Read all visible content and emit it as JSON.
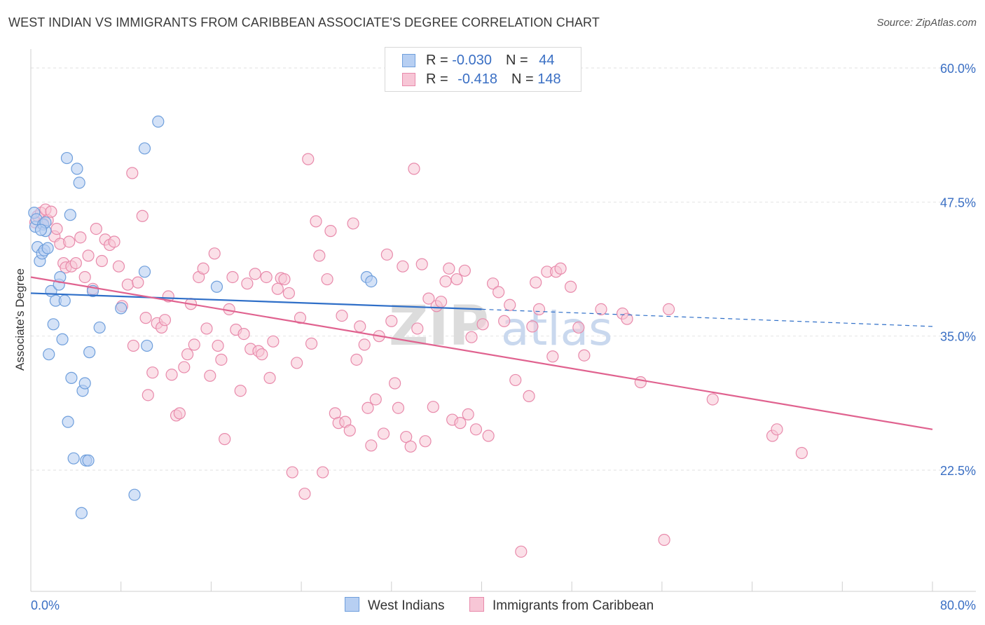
{
  "title": "WEST INDIAN VS IMMIGRANTS FROM CARIBBEAN ASSOCIATE'S DEGREE CORRELATION CHART",
  "source": "Source: ZipAtlas.com",
  "colors": {
    "blue": "#6f9fdc",
    "blue_fill": "#b7cff2",
    "blue_line": "#2f6fc8",
    "pink": "#e88aab",
    "pink_fill": "#f7c6d6",
    "pink_line": "#e0628f",
    "axis_text": "#3a6fc4"
  },
  "legend": {
    "row1": {
      "r_label": "R = ",
      "r_value": "-0.030",
      "n_label": "N = ",
      "n_value": "44"
    },
    "row2": {
      "r_label": "R = ",
      "r_value": "-0.418",
      "n_label": "N = ",
      "n_value": "148"
    }
  },
  "bottom_legend": {
    "series1": "West Indians",
    "series2": "Immigrants from Caribbean"
  },
  "watermark": {
    "zip": "ZIP",
    "atlas": "atlas"
  },
  "chart_data": {
    "type": "scatter",
    "ylabel": "Associate's Degree",
    "xlim": [
      0,
      80
    ],
    "ylim": [
      10,
      62
    ],
    "x_ticks": [
      "0.0%",
      "80.0%"
    ],
    "y_ticks": [
      {
        "value": 60.0,
        "label": "60.0%"
      },
      {
        "value": 47.5,
        "label": "47.5%"
      },
      {
        "value": 35.0,
        "label": "35.0%"
      },
      {
        "value": 22.5,
        "label": "22.5%"
      }
    ],
    "series": [
      {
        "name": "West Indians",
        "trend": {
          "x0": 0,
          "y0": 39.0,
          "x1": 40,
          "y1": 37.5,
          "dash_to_x": 80,
          "dash_to_y": 35.9
        },
        "points": [
          [
            0.3,
            46.5
          ],
          [
            0.4,
            45.2
          ],
          [
            0.5,
            45.9
          ],
          [
            0.6,
            43.3
          ],
          [
            0.8,
            42.0
          ],
          [
            1.0,
            42.7
          ],
          [
            1.1,
            45.4
          ],
          [
            1.2,
            43.0
          ],
          [
            1.3,
            44.8
          ],
          [
            1.5,
            43.2
          ],
          [
            1.6,
            33.3
          ],
          [
            1.8,
            39.2
          ],
          [
            2.0,
            36.1
          ],
          [
            2.2,
            38.3
          ],
          [
            2.5,
            39.8
          ],
          [
            2.6,
            40.5
          ],
          [
            2.8,
            34.7
          ],
          [
            3.0,
            38.3
          ],
          [
            3.2,
            51.6
          ],
          [
            3.3,
            27.0
          ],
          [
            3.5,
            46.3
          ],
          [
            3.6,
            31.1
          ],
          [
            3.8,
            23.6
          ],
          [
            4.1,
            50.6
          ],
          [
            4.3,
            49.3
          ],
          [
            4.5,
            18.5
          ],
          [
            4.6,
            29.9
          ],
          [
            4.8,
            30.6
          ],
          [
            4.9,
            23.4
          ],
          [
            5.1,
            23.4
          ],
          [
            5.2,
            33.5
          ],
          [
            5.5,
            39.2
          ],
          [
            6.1,
            35.8
          ],
          [
            8.0,
            37.6
          ],
          [
            9.2,
            20.2
          ],
          [
            10.1,
            41.0
          ],
          [
            10.3,
            34.1
          ],
          [
            10.1,
            52.5
          ],
          [
            11.3,
            55.0
          ],
          [
            16.5,
            39.6
          ],
          [
            29.8,
            40.5
          ],
          [
            30.2,
            40.1
          ],
          [
            1.3,
            45.6
          ],
          [
            0.9,
            44.9
          ]
        ]
      },
      {
        "name": "Immigrants from Caribbean",
        "trend": {
          "x0": 0,
          "y0": 40.5,
          "x1": 80,
          "y1": 26.3
        },
        "points": [
          [
            0.4,
            45.6
          ],
          [
            0.6,
            46.2
          ],
          [
            0.9,
            46.5
          ],
          [
            1.1,
            45.5
          ],
          [
            1.3,
            46.8
          ],
          [
            1.5,
            45.8
          ],
          [
            1.8,
            46.6
          ],
          [
            2.1,
            44.3
          ],
          [
            2.3,
            45.0
          ],
          [
            2.6,
            43.6
          ],
          [
            2.9,
            41.8
          ],
          [
            3.1,
            41.4
          ],
          [
            3.4,
            43.8
          ],
          [
            3.6,
            41.5
          ],
          [
            4.0,
            41.8
          ],
          [
            4.4,
            44.2
          ],
          [
            4.8,
            40.5
          ],
          [
            5.1,
            42.5
          ],
          [
            5.5,
            39.4
          ],
          [
            5.8,
            45.0
          ],
          [
            6.3,
            42.0
          ],
          [
            6.6,
            44.0
          ],
          [
            7.0,
            43.5
          ],
          [
            7.4,
            43.8
          ],
          [
            7.8,
            41.5
          ],
          [
            8.1,
            37.8
          ],
          [
            8.6,
            39.8
          ],
          [
            9.0,
            50.2
          ],
          [
            9.1,
            34.1
          ],
          [
            9.5,
            40.0
          ],
          [
            9.9,
            46.2
          ],
          [
            10.2,
            36.7
          ],
          [
            10.4,
            29.5
          ],
          [
            10.8,
            31.6
          ],
          [
            11.2,
            36.2
          ],
          [
            11.6,
            35.8
          ],
          [
            11.9,
            36.5
          ],
          [
            12.2,
            38.7
          ],
          [
            12.5,
            31.4
          ],
          [
            12.9,
            27.6
          ],
          [
            13.2,
            27.8
          ],
          [
            13.6,
            32.1
          ],
          [
            13.9,
            33.3
          ],
          [
            14.2,
            38.0
          ],
          [
            14.5,
            34.2
          ],
          [
            14.9,
            40.5
          ],
          [
            15.3,
            41.3
          ],
          [
            15.6,
            35.7
          ],
          [
            15.9,
            31.3
          ],
          [
            16.3,
            42.7
          ],
          [
            16.6,
            34.1
          ],
          [
            16.9,
            32.8
          ],
          [
            17.2,
            25.4
          ],
          [
            17.6,
            37.5
          ],
          [
            17.9,
            40.5
          ],
          [
            18.2,
            35.6
          ],
          [
            18.6,
            29.9
          ],
          [
            18.9,
            35.2
          ],
          [
            19.2,
            39.9
          ],
          [
            19.5,
            33.8
          ],
          [
            19.9,
            40.8
          ],
          [
            20.2,
            33.6
          ],
          [
            20.5,
            33.3
          ],
          [
            20.9,
            40.5
          ],
          [
            21.2,
            31.1
          ],
          [
            21.5,
            34.5
          ],
          [
            21.9,
            39.4
          ],
          [
            22.2,
            40.4
          ],
          [
            22.5,
            40.3
          ],
          [
            22.9,
            39.0
          ],
          [
            23.2,
            22.3
          ],
          [
            23.6,
            32.5
          ],
          [
            23.9,
            36.7
          ],
          [
            24.3,
            20.3
          ],
          [
            24.6,
            51.5
          ],
          [
            24.9,
            34.3
          ],
          [
            25.3,
            45.7
          ],
          [
            25.6,
            42.5
          ],
          [
            25.9,
            22.3
          ],
          [
            26.3,
            40.3
          ],
          [
            26.6,
            44.8
          ],
          [
            27.0,
            27.8
          ],
          [
            27.3,
            26.9
          ],
          [
            27.6,
            36.9
          ],
          [
            27.9,
            27.0
          ],
          [
            28.3,
            26.2
          ],
          [
            28.6,
            45.5
          ],
          [
            28.9,
            32.8
          ],
          [
            29.2,
            35.9
          ],
          [
            29.6,
            34.2
          ],
          [
            29.9,
            28.3
          ],
          [
            30.2,
            24.8
          ],
          [
            30.6,
            29.1
          ],
          [
            30.9,
            35.0
          ],
          [
            31.3,
            25.9
          ],
          [
            31.6,
            42.6
          ],
          [
            32.0,
            36.4
          ],
          [
            32.3,
            30.6
          ],
          [
            32.6,
            28.3
          ],
          [
            33.0,
            41.5
          ],
          [
            33.3,
            25.6
          ],
          [
            33.7,
            24.7
          ],
          [
            34.0,
            50.6
          ],
          [
            34.3,
            35.7
          ],
          [
            34.7,
            41.7
          ],
          [
            35.0,
            25.2
          ],
          [
            35.3,
            38.5
          ],
          [
            35.7,
            28.4
          ],
          [
            36.0,
            37.8
          ],
          [
            36.4,
            38.2
          ],
          [
            36.8,
            40.1
          ],
          [
            37.1,
            41.3
          ],
          [
            37.4,
            27.2
          ],
          [
            37.8,
            40.3
          ],
          [
            38.1,
            26.9
          ],
          [
            38.5,
            41.1
          ],
          [
            38.8,
            27.7
          ],
          [
            39.1,
            34.9
          ],
          [
            39.5,
            26.3
          ],
          [
            40.1,
            36.1
          ],
          [
            40.6,
            25.7
          ],
          [
            41.0,
            39.9
          ],
          [
            41.5,
            39.1
          ],
          [
            42.0,
            36.4
          ],
          [
            42.5,
            37.9
          ],
          [
            43.0,
            30.9
          ],
          [
            43.5,
            14.9
          ],
          [
            44.2,
            29.4
          ],
          [
            44.8,
            40.0
          ],
          [
            45.1,
            37.5
          ],
          [
            45.8,
            41.0
          ],
          [
            46.3,
            33.1
          ],
          [
            46.6,
            41.0
          ],
          [
            47.0,
            41.3
          ],
          [
            47.9,
            39.6
          ],
          [
            48.6,
            35.8
          ],
          [
            49.1,
            33.2
          ],
          [
            50.6,
            37.5
          ],
          [
            52.5,
            37.1
          ],
          [
            52.9,
            36.6
          ],
          [
            54.1,
            30.7
          ],
          [
            56.6,
            37.5
          ],
          [
            60.5,
            29.1
          ],
          [
            65.8,
            25.7
          ],
          [
            66.2,
            26.3
          ],
          [
            68.4,
            24.1
          ],
          [
            56.2,
            16.0
          ],
          [
            44.5,
            35.9
          ]
        ]
      }
    ]
  }
}
